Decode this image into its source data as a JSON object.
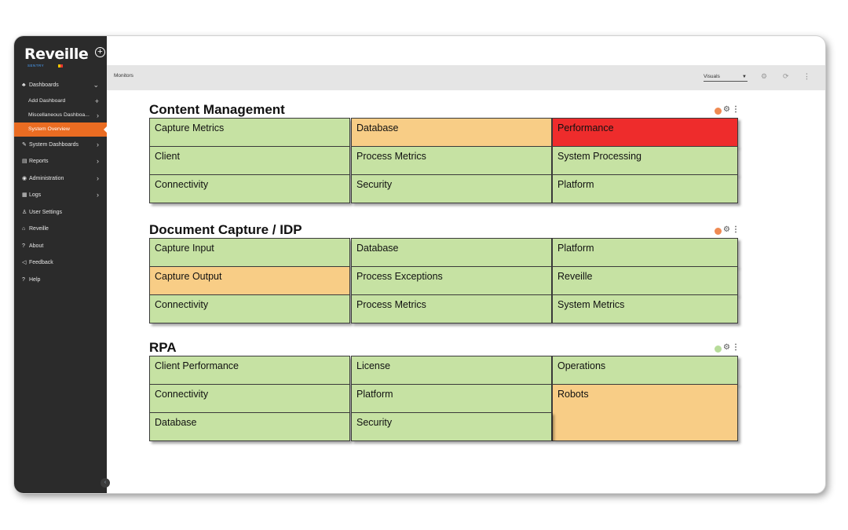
{
  "app": {
    "logo_text": "Reveille",
    "logo_sub": "SENTRY"
  },
  "sidebar": {
    "items": [
      {
        "label": "Dashboards",
        "icon": "dashboard-icon",
        "kind": "chev-down"
      },
      {
        "label": "Add Dashboard",
        "kind": "plus",
        "sub": true
      },
      {
        "label": "Miscellaneous Dashboa...",
        "kind": "chev",
        "sub": true
      },
      {
        "label": "System Overview",
        "active": true,
        "sub": true
      },
      {
        "label": "System Dashboards",
        "icon": "wrench-icon",
        "kind": "chev"
      },
      {
        "label": "Reports",
        "icon": "chart-icon",
        "kind": "chev"
      },
      {
        "label": "Administration",
        "icon": "eye-icon",
        "kind": "chev"
      },
      {
        "label": "Logs",
        "icon": "log-icon",
        "kind": "chev"
      },
      {
        "label": "User Settings",
        "icon": "user-icon"
      },
      {
        "label": "Reveille",
        "icon": "home-icon"
      },
      {
        "label": "About",
        "icon": "question-icon"
      },
      {
        "label": "Feedback",
        "icon": "megaphone-icon"
      },
      {
        "label": "Help",
        "icon": "question-icon"
      }
    ]
  },
  "header": {
    "title": "Monitors",
    "visuals_select": "Visuals"
  },
  "colors": {
    "ok": "#c6e2a3",
    "warning": "#f8cd86",
    "critical": "#ee2c2c",
    "accent": "#ea6c22",
    "status_orange": "#ef8a52",
    "status_green": "#b7dc9a"
  },
  "sections": [
    {
      "title": "Content Management",
      "status": "warning",
      "tiles": [
        {
          "label": "Capture Metrics",
          "state": "ok"
        },
        {
          "label": "Database",
          "state": "warning"
        },
        {
          "label": "Performance",
          "state": "critical"
        },
        {
          "label": "Client",
          "state": "ok"
        },
        {
          "label": "Process Metrics",
          "state": "ok"
        },
        {
          "label": "System Processing",
          "state": "ok"
        },
        {
          "label": "Connectivity",
          "state": "ok"
        },
        {
          "label": "Security",
          "state": "ok"
        },
        {
          "label": "Platform",
          "state": "ok"
        }
      ]
    },
    {
      "title": "Document Capture / IDP",
      "status": "warning",
      "tiles": [
        {
          "label": "Capture Input",
          "state": "ok"
        },
        {
          "label": "Database",
          "state": "ok"
        },
        {
          "label": "Platform",
          "state": "ok"
        },
        {
          "label": "Capture Output",
          "state": "warning"
        },
        {
          "label": "Process Exceptions",
          "state": "ok"
        },
        {
          "label": "Reveille",
          "state": "ok"
        },
        {
          "label": "Connectivity",
          "state": "ok"
        },
        {
          "label": "Process Metrics",
          "state": "ok"
        },
        {
          "label": "System Metrics",
          "state": "ok"
        }
      ]
    },
    {
      "title": "RPA",
      "status": "ok",
      "tiles": [
        {
          "label": "Client Performance",
          "state": "ok"
        },
        {
          "label": "License",
          "state": "ok"
        },
        {
          "label": "Operations",
          "state": "ok"
        },
        {
          "label": "Connectivity",
          "state": "ok"
        },
        {
          "label": "Platform",
          "state": "ok"
        },
        {
          "label": "Robots",
          "state": "warning"
        },
        {
          "label": "Database",
          "state": "ok"
        },
        {
          "label": "Security",
          "state": "ok"
        }
      ]
    }
  ]
}
